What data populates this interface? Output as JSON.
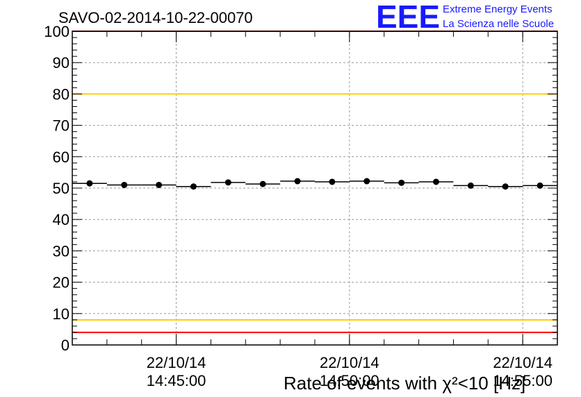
{
  "chart_data": {
    "type": "scatter",
    "title": "SAVO-02-2014-10-22-00070",
    "xlabel": "Rate of events with χ²<10 [Hz]",
    "ylabel": "",
    "ylim": [
      0,
      100
    ],
    "yticks": [
      "0",
      "10",
      "20",
      "30",
      "40",
      "50",
      "60",
      "70",
      "80",
      "90",
      "100"
    ],
    "xticks": [
      {
        "date": "22/10/14",
        "time": "14:45:00"
      },
      {
        "date": "22/10/14",
        "time": "14:50:00"
      },
      {
        "date": "22/10/14",
        "time": "14:55:00"
      }
    ],
    "grid": true,
    "series": [
      {
        "x": [
          "14:42:30",
          "14:43:30",
          "14:44:30",
          "14:45:30",
          "14:46:30",
          "14:47:30",
          "14:48:30",
          "14:49:30",
          "14:50:30",
          "14:51:30",
          "14:52:30",
          "14:53:30",
          "14:54:30",
          "14:55:30"
        ],
        "values": [
          51.5,
          51.0,
          51.0,
          50.5,
          51.8,
          51.3,
          52.2,
          52.0,
          52.2,
          51.7,
          52.0,
          50.8,
          50.5,
          50.8
        ],
        "color": "#000000"
      }
    ],
    "reference_lines": [
      {
        "y": 100,
        "color": "#ff0000"
      },
      {
        "y": 80,
        "color": "#ffcc00"
      },
      {
        "y": 8,
        "color": "#ffcc00"
      },
      {
        "y": 4,
        "color": "#ff0000"
      }
    ]
  },
  "logo": {
    "letters": "EEE",
    "line1": "Extreme Energy Events",
    "line2": "La Scienza nelle Scuole",
    "color": "#1a1aff"
  }
}
